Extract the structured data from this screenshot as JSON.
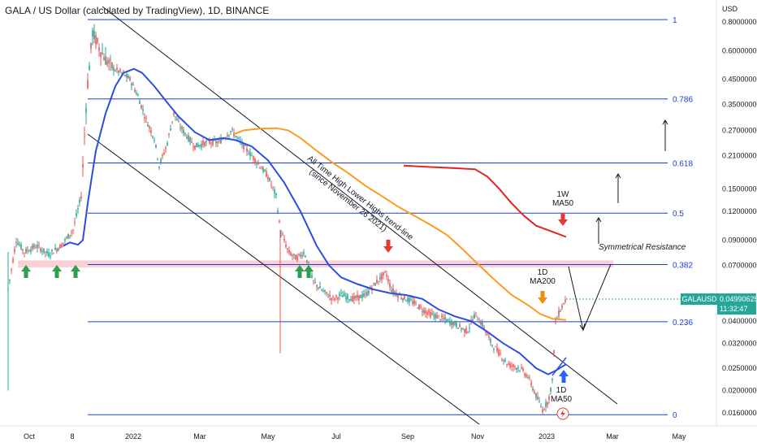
{
  "header": {
    "title": "GALA / US Dollar (calculated by TradingView), 1D, BINANCE"
  },
  "colors": {
    "up": "#26a69a",
    "down": "#ef5350",
    "ma50_1d": "#2a4fe0",
    "ma200_1d": "#ff9a1f",
    "ma50_1w": "#e02424",
    "fib": "#1e3fcc",
    "channel": "#131722",
    "resistance": "#f7c6cc",
    "green_arrow": "#2e9e4f",
    "red_arrow": "#e53935",
    "orange_arrow": "#f28c0f",
    "blue_arrow": "#2962ff",
    "price_label_bg": "#26a69a"
  },
  "chart_data": {
    "type": "candlestick",
    "title": "GALA / US Dollar (calculated by TradingView), 1D, BINANCE",
    "y_axis": {
      "label": "USD",
      "scale": "log",
      "range": [
        0.0145,
        0.86
      ],
      "ticks": [
        "0.80000000",
        "0.60000000",
        "0.45000000",
        "0.35000000",
        "0.27000000",
        "0.21000000",
        "0.15000000",
        "0.12000000",
        "0.09000000",
        "0.07000000",
        "0.05000000",
        "0.04000000",
        "0.03200000",
        "0.02500000",
        "0.02000000",
        "0.01600000"
      ]
    },
    "x_axis": {
      "ticks": [
        "Oct",
        "8",
        "2022",
        "Mar",
        "May",
        "Jul",
        "Sep",
        "Nov",
        "2023",
        "Mar",
        "May"
      ]
    },
    "last_price": {
      "symbol": "GALAUSD",
      "price": "0.04990625",
      "countdown": "11:32:47"
    },
    "fib_levels": [
      {
        "label": "1",
        "value": 0.818
      },
      {
        "label": "0.786",
        "value": 0.37
      },
      {
        "label": "0.618",
        "value": 0.195
      },
      {
        "label": "0.5",
        "value": 0.118
      },
      {
        "label": "0.382",
        "value": 0.0705
      },
      {
        "label": "0.236",
        "value": 0.0398
      },
      {
        "label": "0",
        "value": 0.0157
      }
    ],
    "resistance_zone": {
      "low": 0.0685,
      "high": 0.0735
    },
    "annotations": {
      "trendline": "All Time High Lower Highs trend-line\n(since November 26 2021)",
      "sym_resistance": "Symmetrical Resistance",
      "ma200_label": "1D\nMA200",
      "ma50_label": "1D\nMA50",
      "w_ma50_label": "1W\nMA50"
    }
  }
}
